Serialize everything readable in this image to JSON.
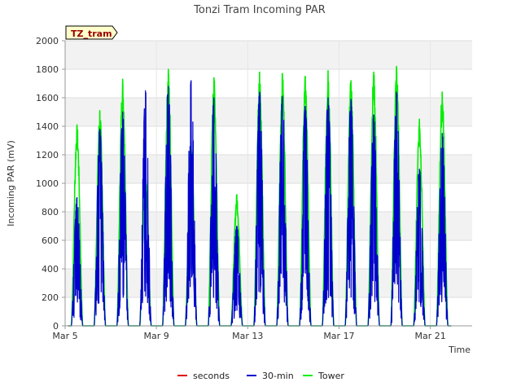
{
  "chart_data": {
    "type": "line",
    "title": "Tonzi Tram Incoming PAR",
    "xlabel": "Time",
    "ylabel": "Incoming PAR (mV)",
    "ylim": [
      0,
      2000
    ],
    "yticks": [
      0,
      200,
      400,
      600,
      800,
      1000,
      1200,
      1400,
      1600,
      1800,
      2000
    ],
    "xlim": [
      "2023-03-05T00:00",
      "2023-03-22T20:00"
    ],
    "xticks": [
      {
        "label": "Mar 5",
        "date": "2023-03-05"
      },
      {
        "label": "Mar 9",
        "date": "2023-03-09"
      },
      {
        "label": "Mar 13",
        "date": "2023-03-13"
      },
      {
        "label": "Mar 17",
        "date": "2023-03-17"
      },
      {
        "label": "Mar 21",
        "date": "2023-03-21"
      }
    ],
    "grid": true,
    "background_bands": true,
    "legend_position": "bottom",
    "badge": "TZ_tram",
    "series": [
      {
        "name": "seconds",
        "color": "#dd0000",
        "values": []
      },
      {
        "name": "30-min",
        "color": "#0000cc",
        "daily_peaks": [
          {
            "date": "2023-03-05",
            "peak": 900
          },
          {
            "date": "2023-03-06",
            "peak": 1380
          },
          {
            "date": "2023-03-07",
            "peak": 1500
          },
          {
            "date": "2023-03-08",
            "peak": 1650
          },
          {
            "date": "2023-03-09",
            "peak": 1680
          },
          {
            "date": "2023-03-10",
            "peak": 1720
          },
          {
            "date": "2023-03-11",
            "peak": 1600
          },
          {
            "date": "2023-03-12",
            "peak": 700
          },
          {
            "date": "2023-03-13",
            "peak": 1640
          },
          {
            "date": "2023-03-14",
            "peak": 1610
          },
          {
            "date": "2023-03-15",
            "peak": 1540
          },
          {
            "date": "2023-03-16",
            "peak": 1600
          },
          {
            "date": "2023-03-17",
            "peak": 1590
          },
          {
            "date": "2023-03-18",
            "peak": 1480
          },
          {
            "date": "2023-03-19",
            "peak": 1640
          },
          {
            "date": "2023-03-20",
            "peak": 1100
          },
          {
            "date": "2023-03-21",
            "peak": 1350
          }
        ]
      },
      {
        "name": "Tower",
        "color": "#00ee00",
        "daily_peaks": [
          {
            "date": "2023-03-05",
            "peak": 1410
          },
          {
            "date": "2023-03-06",
            "peak": 1510
          },
          {
            "date": "2023-03-07",
            "peak": 1730
          },
          {
            "date": "2023-03-08",
            "peak": 1050
          },
          {
            "date": "2023-03-09",
            "peak": 1800
          },
          {
            "date": "2023-03-10",
            "peak": 1290
          },
          {
            "date": "2023-03-11",
            "peak": 1740
          },
          {
            "date": "2023-03-12",
            "peak": 920
          },
          {
            "date": "2023-03-13",
            "peak": 1780
          },
          {
            "date": "2023-03-14",
            "peak": 1770
          },
          {
            "date": "2023-03-15",
            "peak": 1750
          },
          {
            "date": "2023-03-16",
            "peak": 1790
          },
          {
            "date": "2023-03-17",
            "peak": 1720
          },
          {
            "date": "2023-03-18",
            "peak": 1780
          },
          {
            "date": "2023-03-19",
            "peak": 1820
          },
          {
            "date": "2023-03-20",
            "peak": 1450
          },
          {
            "date": "2023-03-21",
            "peak": 1640
          }
        ]
      }
    ]
  }
}
